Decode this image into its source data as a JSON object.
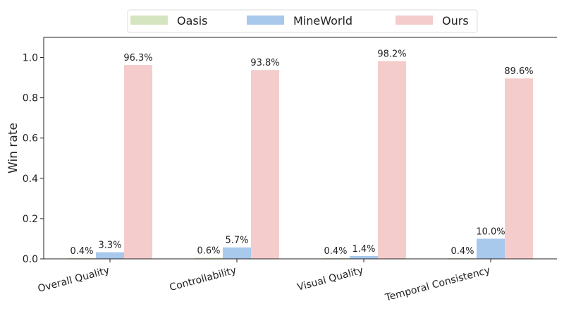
{
  "chart_data": {
    "type": "bar",
    "title": "",
    "xlabel": "",
    "ylabel": "Win rate",
    "ylim": [
      0,
      1.1
    ],
    "yticks": [
      "0.0",
      "0.2",
      "0.4",
      "0.6",
      "0.8",
      "1.0"
    ],
    "grid": false,
    "legend_position": "top-center",
    "categories": [
      "Overall Quality",
      "Controllability",
      "Visual Quality",
      "Temporal Consistency"
    ],
    "series": [
      {
        "name": "Oasis",
        "color": "#d5e5c0",
        "values": [
          0.004,
          0.006,
          0.004,
          0.004
        ],
        "labels": [
          "0.4%",
          "0.6%",
          "0.4%",
          "0.4%"
        ]
      },
      {
        "name": "MineWorld",
        "color": "#a8c8ec",
        "values": [
          0.033,
          0.057,
          0.014,
          0.1
        ],
        "labels": [
          "3.3%",
          "5.7%",
          "1.4%",
          "10.0%"
        ]
      },
      {
        "name": "Ours",
        "color": "#f4cccc",
        "values": [
          0.963,
          0.938,
          0.982,
          0.896
        ],
        "labels": [
          "96.3%",
          "93.8%",
          "98.2%",
          "89.6%"
        ]
      }
    ]
  }
}
